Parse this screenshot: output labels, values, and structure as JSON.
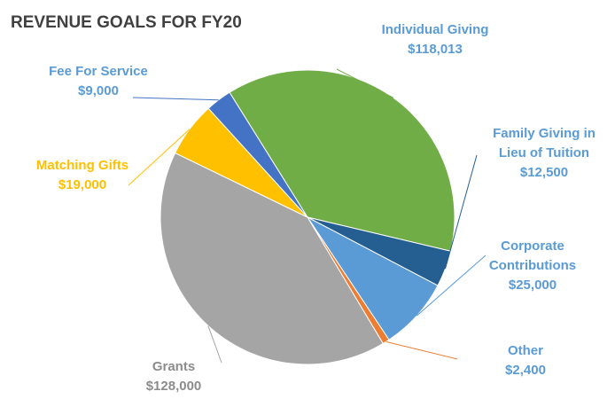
{
  "chart_data": {
    "type": "pie",
    "title": "REVENUE GOALS FOR FY20",
    "slices": [
      {
        "label": [
          "Individual Giving"
        ],
        "value_text": "$118,013",
        "value": 118013,
        "color": "#70AD47"
      },
      {
        "label": [
          "Family Giving in",
          "Lieu of Tuition"
        ],
        "value_text": "$12,500",
        "value": 12500,
        "color": "#255E91"
      },
      {
        "label": [
          "Corporate",
          "Contributions"
        ],
        "value_text": "$25,000",
        "value": 25000,
        "color": "#5B9BD5"
      },
      {
        "label": [
          "Other"
        ],
        "value_text": "$2,400",
        "value": 2400,
        "color": "#ED7D31"
      },
      {
        "label": [
          "Grants"
        ],
        "value_text": "$128,000",
        "value": 128000,
        "color": "#A5A5A5"
      },
      {
        "label": [
          "Matching Gifts"
        ],
        "value_text": "$19,000",
        "value": 19000,
        "color": "#FFC000"
      },
      {
        "label": [
          "Fee For Service"
        ],
        "value_text": "$9,000",
        "value": 9000,
        "color": "#4472C4"
      }
    ],
    "legend": "none"
  }
}
